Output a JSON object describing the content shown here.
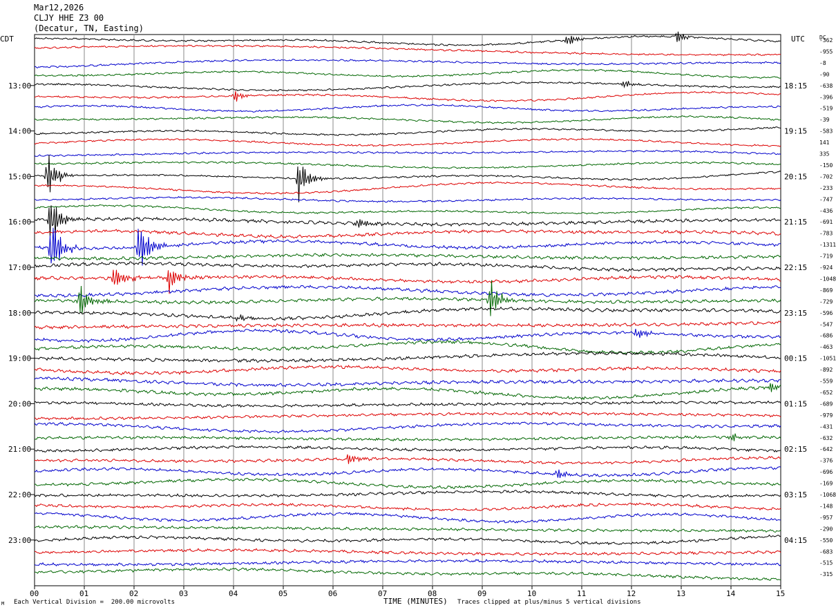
{
  "header": {
    "date": "Mar12,2026",
    "station": "CLJY HHE Z3 00",
    "location": "(Decatur, TN, Easting)"
  },
  "axis": {
    "left_label": "CDT",
    "right_label": "UTC",
    "dc_label": "DC",
    "xlabel": "TIME (MINUTES)"
  },
  "footer": {
    "scale_note": "Each Vertical Division =  200.00 microvolts",
    "clip_note": "Traces clipped at plus/minus 5 vertical divisions",
    "corner_mark": "M"
  },
  "chart_data": {
    "type": "line",
    "title": "",
    "xlim": [
      0,
      15
    ],
    "x_ticks": [
      "00",
      "01",
      "02",
      "03",
      "04",
      "05",
      "06",
      "07",
      "08",
      "09",
      "10",
      "11",
      "12",
      "13",
      "14",
      "15"
    ],
    "grid": "vertical lines at each minute",
    "trace_colors": [
      "#000000",
      "#dd0000",
      "#0000cc",
      "#006600"
    ],
    "num_traces": 48,
    "left_time_labels": [
      "13:00",
      "14:00",
      "15:00",
      "16:00",
      "17:00",
      "18:00",
      "19:00",
      "20:00",
      "21:00",
      "22:00",
      "23:00"
    ],
    "right_time_labels": [
      "18:15",
      "19:15",
      "20:15",
      "21:15",
      "22:15",
      "23:15",
      "00:15",
      "01:15",
      "02:15",
      "03:15",
      "04:15"
    ],
    "dc_offsets": [
      "-362",
      "-955",
      "-8",
      "-90",
      "-638",
      "-396",
      "-519",
      "-39",
      "-583",
      "141",
      "335",
      "-150",
      "-702",
      "-233",
      "-747",
      "-436",
      "-691",
      "-783",
      "-1311",
      "-719",
      "-924",
      "-1048",
      "-869",
      "-729",
      "-596",
      "-547",
      "-686",
      "-463",
      "-1051",
      "-892",
      "-559",
      "-652",
      "-689",
      "-979",
      "-431",
      "-632",
      "-642",
      "-376",
      "-696",
      "-169",
      "-1068",
      "-148",
      "-957",
      "-290",
      "-550",
      "-683",
      "-515",
      "-315"
    ],
    "events": [
      {
        "trace": 12,
        "minute": 0.25,
        "amp": 32
      },
      {
        "trace": 16,
        "minute": 0.3,
        "amp": 40
      },
      {
        "trace": 18,
        "minute": 0.33,
        "amp": 45
      },
      {
        "trace": 23,
        "minute": 0.9,
        "amp": 25
      },
      {
        "trace": 18,
        "minute": 2.1,
        "amp": 40
      },
      {
        "trace": 21,
        "minute": 1.6,
        "amp": 20
      },
      {
        "trace": 21,
        "minute": 2.7,
        "amp": 22
      },
      {
        "trace": 12,
        "minute": 5.3,
        "amp": 30
      },
      {
        "trace": 23,
        "minute": 9.15,
        "amp": 28
      },
      {
        "trace": 5,
        "minute": 4.0,
        "amp": 8
      },
      {
        "trace": 0,
        "minute": 10.7,
        "amp": 9
      },
      {
        "trace": 0,
        "minute": 12.9,
        "amp": 8
      },
      {
        "trace": 4,
        "minute": 11.85,
        "amp": 6
      },
      {
        "trace": 16,
        "minute": 6.5,
        "amp": 8
      },
      {
        "trace": 26,
        "minute": 12.1,
        "amp": 8
      },
      {
        "trace": 24,
        "minute": 4.1,
        "amp": 5
      },
      {
        "trace": 37,
        "minute": 6.3,
        "amp": 8
      },
      {
        "trace": 38,
        "minute": 10.5,
        "amp": 7
      },
      {
        "trace": 35,
        "minute": 14.0,
        "amp": 6
      },
      {
        "trace": 31,
        "minute": 14.8,
        "amp": 7
      }
    ]
  }
}
